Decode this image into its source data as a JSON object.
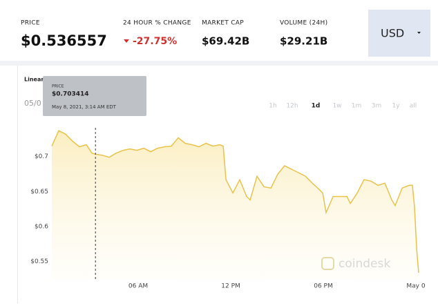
{
  "header": {
    "price_label": "PRICE",
    "price": "$0.536557",
    "change_label": "24 HOUR % CHANGE",
    "change": "-27.75%",
    "market_cap_label": "MARKET CAP",
    "market_cap": "$69.42B",
    "volume_label": "VOLUME (24H)",
    "volume": "$29.21B",
    "currency": "USD"
  },
  "chart_data": {
    "type": "line",
    "scale_label": "Linear",
    "date_label": "05/0",
    "ranges": [
      "1h",
      "12h",
      "1d",
      "1w",
      "1m",
      "3m",
      "1y",
      "all"
    ],
    "active_range": 2,
    "tooltip": {
      "label": "PRICE",
      "value": "$0.703414",
      "time": "May 8, 2021, 3:14 AM EDT",
      "x": 3.23
    },
    "watermark": "coindesk",
    "x": [
      0.4,
      0.85,
      1.3,
      1.75,
      2.19,
      2.64,
      3.0,
      3.23,
      3.67,
      4.12,
      4.57,
      5.02,
      5.46,
      5.91,
      6.36,
      6.81,
      7.25,
      7.7,
      8.15,
      8.6,
      9.05,
      9.49,
      9.94,
      10.39,
      10.84,
      11.29,
      11.51,
      11.69,
      12.14,
      12.58,
      13.03,
      13.26,
      13.7,
      14.15,
      14.6,
      15.05,
      15.49,
      15.94,
      16.39,
      16.84,
      17.29,
      17.73,
      17.96,
      18.18,
      18.63,
      19.08,
      19.53,
      19.75,
      20.2,
      20.64,
      21.09,
      21.54,
      21.99,
      22.44,
      22.66,
      23.11,
      23.56,
      23.78,
      23.91,
      24.05,
      24.18
    ],
    "series": [
      {
        "color": "#e9c24a",
        "values": [
          0.715,
          0.737,
          0.732,
          0.722,
          0.714,
          0.717,
          0.705,
          0.703414,
          0.702,
          0.699,
          0.705,
          0.709,
          0.711,
          0.709,
          0.712,
          0.707,
          0.712,
          0.714,
          0.715,
          0.727,
          0.719,
          0.717,
          0.714,
          0.719,
          0.715,
          0.717,
          0.715,
          0.667,
          0.648,
          0.667,
          0.643,
          0.638,
          0.672,
          0.657,
          0.655,
          0.675,
          0.687,
          0.682,
          0.677,
          0.672,
          0.662,
          0.653,
          0.648,
          0.62,
          0.643,
          0.643,
          0.643,
          0.633,
          0.648,
          0.667,
          0.665,
          0.659,
          0.662,
          0.638,
          0.63,
          0.655,
          0.659,
          0.659,
          0.628,
          0.568,
          0.534
        ]
      }
    ],
    "xlim": [
      0.4,
      24.36
    ],
    "ylim": [
      0.524,
      0.756
    ],
    "xticks": [
      {
        "value": 6,
        "label": "06 AM"
      },
      {
        "value": 12,
        "label": "12 PM"
      },
      {
        "value": 18,
        "label": "06 PM"
      },
      {
        "value": 24,
        "label": "May 0"
      }
    ],
    "yticks": [
      {
        "value": 0.55,
        "label": "$0.55"
      },
      {
        "value": 0.6,
        "label": "$0.6"
      },
      {
        "value": 0.65,
        "label": "$0.65"
      },
      {
        "value": 0.7,
        "label": "$0.7"
      }
    ]
  }
}
